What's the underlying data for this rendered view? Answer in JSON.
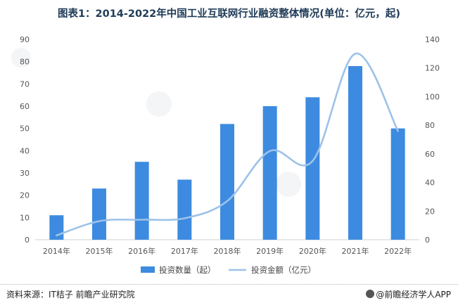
{
  "title": "图表1：2014-2022年中国工业互联网行业融资整体情况(单位：亿元，起)",
  "source": "资料来源：IT桔子 前瞻产业研究院",
  "brand": "@前瞻经济学人APP",
  "colors": {
    "bar": "#3d8be0",
    "line": "#9cc2e8",
    "title": "#1f3b57"
  },
  "chart_data": {
    "type": "bar",
    "categories": [
      "2014年",
      "2015年",
      "2016年",
      "2017年",
      "2018年",
      "2019年",
      "2020年",
      "2021年",
      "2022年"
    ],
    "series": [
      {
        "name": "投资数量（起）",
        "type": "bar",
        "axis": "left",
        "values": [
          11,
          23,
          35,
          27,
          52,
          60,
          64,
          78,
          50
        ]
      },
      {
        "name": "投资金额（亿元）",
        "type": "line",
        "axis": "right",
        "smooth": true,
        "values": [
          3,
          13,
          14,
          15,
          27,
          62,
          55,
          130,
          76
        ]
      }
    ],
    "y_left": {
      "min": 0,
      "max": 90,
      "ticks": [
        0,
        10,
        20,
        30,
        40,
        50,
        60,
        70,
        80,
        90
      ]
    },
    "y_right": {
      "min": 0,
      "max": 140,
      "ticks": [
        0,
        20,
        40,
        60,
        80,
        100,
        120,
        140
      ]
    },
    "grid": false,
    "legend_position": "bottom"
  }
}
